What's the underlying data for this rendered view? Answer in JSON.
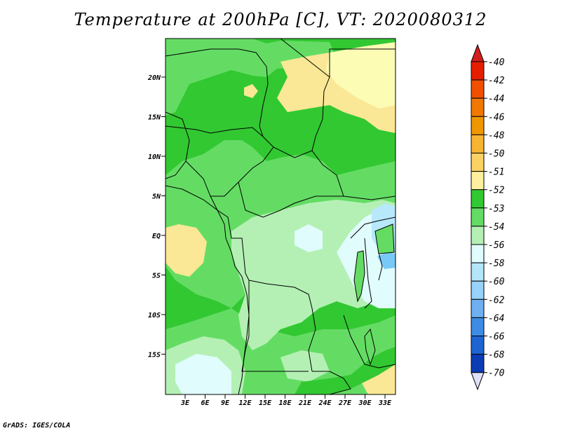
{
  "title": "Temperature at 200hPa [C], VT: 2020080312",
  "credit": "GrADS: IGES/COLA",
  "map": {
    "lat_labels": [
      "20N",
      "15N",
      "10N",
      "5N",
      "EQ",
      "5S",
      "10S",
      "15S"
    ],
    "lon_labels": [
      "3E",
      "6E",
      "9E",
      "12E",
      "15E",
      "18E",
      "21E",
      "24E",
      "27E",
      "30E",
      "33E"
    ],
    "field_colors": {
      "le_52": "#32c832",
      "band_53": "#64dc64",
      "band_54": "#b4f0b4",
      "band_56": "#e0fcfc",
      "band_58": "#b8e8fc",
      "band_60": "#78c8f8",
      "band_51": "#fae896",
      "band_50": "#fcfcb4"
    }
  },
  "legend": {
    "labels": [
      "-40",
      "-42",
      "-44",
      "-46",
      "-48",
      "-50",
      "-51",
      "-52",
      "-53",
      "-54",
      "-56",
      "-58",
      "-60",
      "-62",
      "-64",
      "-66",
      "-68",
      "-70"
    ],
    "colors": [
      "#e61e00",
      "#f05000",
      "#f07800",
      "#f09600",
      "#f5b432",
      "#fad264",
      "#fcf0a0",
      "#32c832",
      "#64dc64",
      "#b4f0b4",
      "#e0fcfc",
      "#b4e6fa",
      "#96d2fa",
      "#6eaff0",
      "#3c8ce6",
      "#1e64d2",
      "#0a3cb4",
      "#0a1478"
    ],
    "top_color": "#d21e1e",
    "bottom_color": "#e0e0f8"
  }
}
